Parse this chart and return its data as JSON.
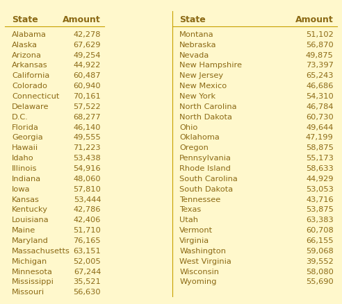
{
  "left_states": [
    "Alabama",
    "Alaska",
    "Arizona",
    "Arkansas",
    "California",
    "Colorado",
    "Connecticut",
    "Delaware",
    "D.C.",
    "Florida",
    "Georgia",
    "Hawaii",
    "Idaho",
    "Illinois",
    "Indiana",
    "Iowa",
    "Kansas",
    "Kentucky",
    "Louisiana",
    "Maine",
    "Maryland",
    "Massachusetts",
    "Michigan",
    "Minnesota",
    "Mississippi",
    "Missouri"
  ],
  "left_amounts": [
    "42,278",
    "67,629",
    "49,254",
    "44,922",
    "60,487",
    "60,940",
    "70,161",
    "57,522",
    "68,277",
    "46,140",
    "49,555",
    "71,223",
    "53,438",
    "54,916",
    "48,060",
    "57,810",
    "53,444",
    "42,786",
    "42,406",
    "51,710",
    "76,165",
    "63,151",
    "52,005",
    "67,244",
    "35,521",
    "56,630"
  ],
  "right_states": [
    "Montana",
    "Nebraska",
    "Nevada",
    "New Hampshire",
    "New Jersey",
    "New Mexico",
    "New York",
    "North Carolina",
    "North Dakota",
    "Ohio",
    "Oklahoma",
    "Oregon",
    "Pennsylvania",
    "Rhode Island",
    "South Carolina",
    "South Dakota",
    "Tennessee",
    "Texas",
    "Utah",
    "Vermont",
    "Virginia",
    "Washington",
    "West Virginia",
    "Wisconsin",
    "Wyoming",
    ""
  ],
  "right_amounts": [
    "51,102",
    "56,870",
    "49,875",
    "73,397",
    "65,243",
    "46,686",
    "54,310",
    "46,784",
    "60,730",
    "49,644",
    "47,199",
    "58,875",
    "55,173",
    "58,633",
    "44,929",
    "53,053",
    "43,716",
    "53,875",
    "63,383",
    "60,708",
    "66,155",
    "59,068",
    "39,552",
    "58,080",
    "55,690",
    ""
  ],
  "header_state": "State",
  "header_amount": "Amount",
  "bg_color": "#FFF8CC",
  "border_color": "#E8A800",
  "header_color": "#8B6914",
  "text_color": "#8B6914",
  "header_line_color": "#C8A000",
  "row_font_size": 8.2,
  "header_font_size": 9.0
}
